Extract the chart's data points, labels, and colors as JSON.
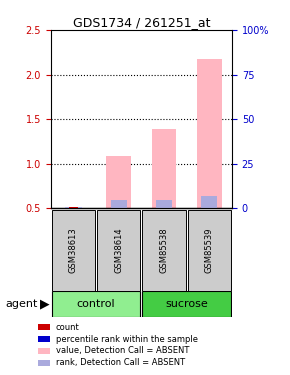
{
  "title": "GDS1734 / 261251_at",
  "samples": [
    "GSM38613",
    "GSM38614",
    "GSM85538",
    "GSM85539"
  ],
  "ylim_left": [
    0.5,
    2.5
  ],
  "ylim_right": [
    0,
    100
  ],
  "yticks_left": [
    0.5,
    1.0,
    1.5,
    2.0,
    2.5
  ],
  "yticks_right": [
    0,
    25,
    50,
    75,
    100
  ],
  "ytick_labels_right": [
    "0",
    "25",
    "50",
    "75",
    "100%"
  ],
  "pink_bar_tops": [
    0.505,
    1.09,
    1.39,
    2.17
  ],
  "blue_bar_tops": [
    0.515,
    0.595,
    0.595,
    0.635
  ],
  "bar_bottom": 0.5,
  "bar_width": 0.55,
  "bar_positions": [
    1,
    2,
    3,
    4
  ],
  "pink_color": "#FFB6C1",
  "blue_color": "#AAAADD",
  "red_color": "#CC0000",
  "dark_blue_color": "#0000CC",
  "left_tick_color": "#CC0000",
  "right_tick_color": "#0000CC",
  "control_color": "#90EE90",
  "sucrose_color": "#44CC44",
  "sample_box_color": "#CCCCCC",
  "grid_color": "black",
  "grid_linestyle": "dotted",
  "grid_linewidth": 0.8,
  "title_fontsize": 9,
  "tick_fontsize": 7,
  "sample_fontsize": 6,
  "group_fontsize": 8,
  "legend_fontsize": 6
}
